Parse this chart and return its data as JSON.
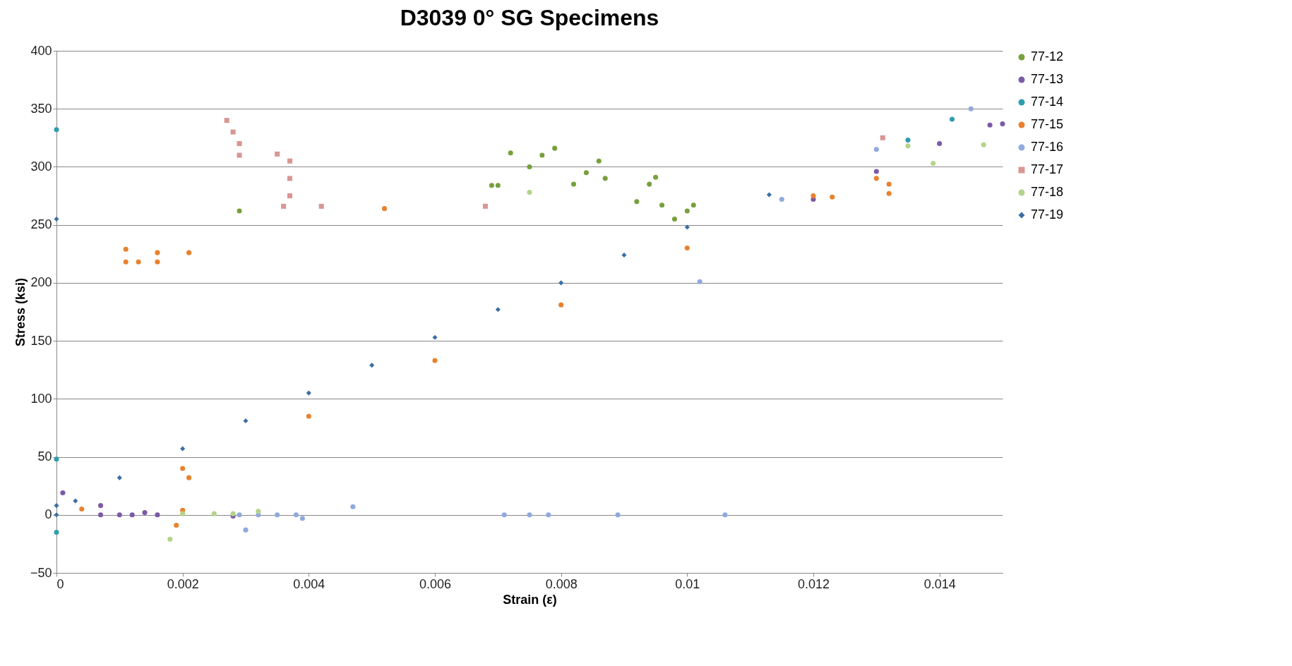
{
  "chart_data": {
    "type": "scatter",
    "title": "D3039 0° SG Specimens",
    "xlabel": "Strain (ε)",
    "ylabel": "Stress (ksi)",
    "xlim": [
      0,
      0.015
    ],
    "xticks": [
      0,
      0.002,
      0.004,
      0.006,
      0.008,
      0.01,
      0.012,
      0.014
    ],
    "ylim": [
      -50,
      400
    ],
    "yticks": [
      -50,
      0,
      50,
      100,
      150,
      200,
      250,
      300,
      350,
      400
    ],
    "grid": "y",
    "legend": "right",
    "series": [
      {
        "name": "77-12",
        "color": "#77a03c",
        "marker": "circle",
        "x": [
          0.0072,
          0.0075,
          0.0077,
          0.0079,
          0.0069,
          0.007,
          0.0082,
          0.0084,
          0.0086,
          0.0087,
          0.0092,
          0.0094,
          0.0095,
          0.0096,
          0.0098,
          0.01,
          0.0101,
          0.0029
        ],
        "values": [
          312,
          300,
          310,
          316,
          284,
          284,
          285,
          295,
          305,
          290,
          270,
          285,
          291,
          267,
          255,
          262,
          267,
          262
        ]
      },
      {
        "name": "77-13",
        "color": "#7b5aa6",
        "marker": "circle",
        "x": [
          0.0007,
          0.001,
          0.0012,
          0.0014,
          0.0016,
          0.0007,
          0.0001,
          0.0028,
          0.012,
          0.013,
          0.014,
          0.0148,
          0.015
        ],
        "values": [
          0,
          0,
          0,
          2,
          0,
          8,
          19,
          -1,
          272,
          296,
          320,
          336,
          337
        ]
      },
      {
        "name": "77-14",
        "color": "#2e9db0",
        "marker": "circle",
        "x": [
          0,
          0,
          0,
          0.0135,
          0.0142
        ],
        "values": [
          332,
          48,
          -15,
          323,
          341
        ]
      },
      {
        "name": "77-15",
        "color": "#e8822e",
        "marker": "circle",
        "x": [
          0.0004,
          0.002,
          0.004,
          0.006,
          0.008,
          0.01,
          0.012,
          0.0123,
          0.013,
          0.0132,
          0.0132,
          0.0011,
          0.0013,
          0.0016,
          0.0011,
          0.0016,
          0.0021,
          0.0021,
          0.0019,
          0.0052,
          0.002
        ],
        "values": [
          5,
          40,
          85,
          133,
          181,
          230,
          275,
          274,
          290,
          285,
          277,
          218,
          218,
          218,
          229,
          226,
          226,
          32,
          -9,
          264,
          4
        ]
      },
      {
        "name": "77-16",
        "color": "#8faadc",
        "marker": "circle",
        "x": [
          0.0115,
          0.013,
          0.0145,
          0.0029,
          0.0032,
          0.0035,
          0.0038,
          0.0039,
          0.003,
          0.0047,
          0.0071,
          0.0075,
          0.0078,
          0.0089,
          0.0106,
          0.0102
        ],
        "values": [
          272,
          315,
          350,
          0,
          0,
          0,
          0,
          -3,
          -13,
          7,
          0,
          0,
          0,
          0,
          0,
          201
        ]
      },
      {
        "name": "77-17",
        "color": "#d99694",
        "marker": "square",
        "x": [
          0.0027,
          0.0028,
          0.0029,
          0.0029,
          0.0035,
          0.0037,
          0.0037,
          0.0037,
          0.0036,
          0.0042,
          0.0131,
          0.0068
        ],
        "values": [
          340,
          330,
          320,
          310,
          311,
          305,
          290,
          275,
          266,
          266,
          325,
          266
        ]
      },
      {
        "name": "77-18",
        "color": "#b3d38a",
        "marker": "circle",
        "x": [
          0.0139,
          0.0147,
          0.0135,
          0.0075,
          0.0018,
          0.002,
          0.0025,
          0.0028,
          0.0032
        ],
        "values": [
          303,
          319,
          318,
          278,
          -21,
          1,
          1,
          1,
          3
        ]
      },
      {
        "name": "77-19",
        "color": "#3a6ea5",
        "marker": "diamond",
        "x": [
          0,
          0,
          0,
          0.0003,
          0.001,
          0.002,
          0.003,
          0.004,
          0.005,
          0.006,
          0.007,
          0.008,
          0.009,
          0.01,
          0.0113
        ],
        "values": [
          0,
          8,
          255,
          12,
          32,
          57,
          81,
          105,
          129,
          153,
          177,
          200,
          224,
          248,
          276
        ]
      }
    ]
  }
}
